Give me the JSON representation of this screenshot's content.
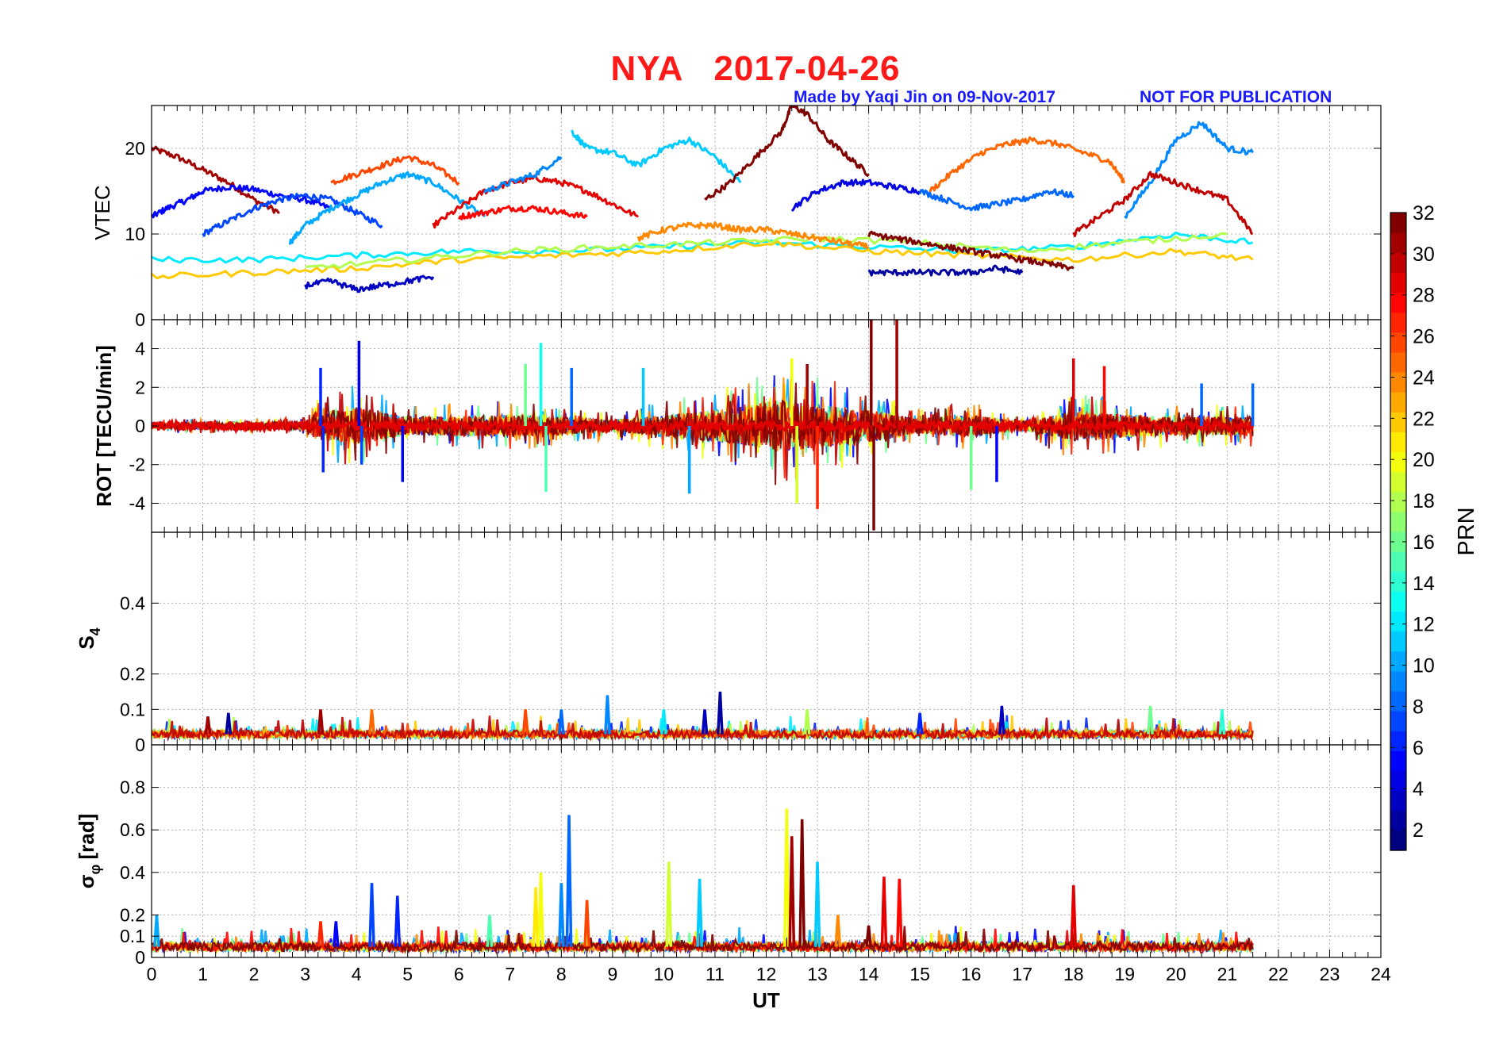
{
  "header": {
    "station": "NYA",
    "date": "2017-04-26",
    "made_by": "Made by Yaqi Jin on 09-Nov-2017",
    "notice": "NOT FOR PUBLICATION"
  },
  "colorbar": {
    "label": "PRN",
    "min": 1,
    "max": 32,
    "ticks": [
      2,
      4,
      6,
      8,
      10,
      12,
      14,
      16,
      18,
      20,
      22,
      24,
      26,
      28,
      30,
      32
    ],
    "colormap": "jet"
  },
  "chart_data": [
    {
      "type": "line",
      "id": "vtec",
      "ylabel": "VTEC",
      "xlim": [
        0,
        24
      ],
      "ylim": [
        0,
        25
      ],
      "yticks": [
        0,
        10,
        20
      ],
      "grid": true,
      "series": [
        {
          "prn": 31,
          "x": [
            0,
            0.5,
            1,
            1.5,
            2,
            2.5
          ],
          "y": [
            20,
            19,
            17.5,
            16,
            14,
            12.5
          ]
        },
        {
          "prn": 5,
          "x": [
            0,
            0.3,
            0.7,
            1,
            1.5,
            2,
            2.5,
            3,
            3.5
          ],
          "y": [
            12,
            13,
            14,
            15,
            15.5,
            15.2,
            14.5,
            14,
            13
          ]
        },
        {
          "prn": 7,
          "x": [
            1,
            1.5,
            2,
            2.5,
            3,
            3.5,
            4,
            4.5
          ],
          "y": [
            10,
            11.5,
            13,
            14,
            14.5,
            14,
            12.5,
            11
          ]
        },
        {
          "prn": 26,
          "x": [
            3.5,
            4,
            4.5,
            5,
            5.5,
            6
          ],
          "y": [
            16,
            17,
            18,
            19,
            18,
            16
          ]
        },
        {
          "prn": 10,
          "x": [
            2.7,
            3,
            3.5,
            4,
            4.5,
            5,
            5.5,
            6,
            6.5
          ],
          "y": [
            9,
            11,
            13,
            14.5,
            16,
            17,
            16,
            14,
            12
          ]
        },
        {
          "prn": 29,
          "x": [
            5.5,
            6,
            6.5,
            7,
            7.5,
            8,
            8.5,
            9,
            9.5
          ],
          "y": [
            11,
            13,
            15,
            16,
            16.5,
            16,
            15,
            13.5,
            12
          ]
        },
        {
          "prn": 28,
          "x": [
            6,
            6.5,
            7,
            7.5,
            8,
            8.5
          ],
          "y": [
            12,
            12.5,
            13,
            13,
            12.5,
            12
          ]
        },
        {
          "prn": 9,
          "x": [
            6.5,
            7,
            7.5,
            8
          ],
          "y": [
            15,
            16,
            17,
            19
          ]
        },
        {
          "prn": 11,
          "x": [
            8.2,
            8.5,
            9,
            9.5,
            10,
            10.5,
            11,
            11.5
          ],
          "y": [
            22,
            20,
            19.5,
            18,
            20,
            21,
            19,
            16
          ]
        },
        {
          "prn": 32,
          "x": [
            10.8,
            11.3,
            11.8,
            12.3,
            12.5,
            12.8,
            13.2,
            13.6,
            14
          ],
          "y": [
            14,
            16,
            19,
            22,
            25,
            24,
            21,
            19,
            17
          ]
        },
        {
          "prn": 4,
          "x": [
            12.5,
            13,
            13.5,
            14,
            14.5,
            15
          ],
          "y": [
            13,
            15,
            16,
            16,
            15.5,
            15
          ]
        },
        {
          "prn": 8,
          "x": [
            15,
            15.5,
            16,
            16.5,
            17,
            17.5,
            18
          ],
          "y": [
            15,
            14,
            13,
            13.5,
            14,
            15,
            14.5
          ]
        },
        {
          "prn": 25,
          "x": [
            15.2,
            15.7,
            16.2,
            16.7,
            17.2,
            17.7,
            18.2,
            18.7,
            19
          ],
          "y": [
            15,
            17.5,
            19.5,
            20.5,
            21,
            20.5,
            19.5,
            18.5,
            16
          ]
        },
        {
          "prn": 9,
          "x": [
            19,
            19.5,
            20,
            20.5,
            21,
            21.5
          ],
          "y": [
            12,
            16,
            21,
            23,
            20,
            19.5
          ]
        },
        {
          "prn": 30,
          "x": [
            18,
            18.5,
            19,
            19.5,
            20,
            20.5,
            21,
            21.5
          ],
          "y": [
            10,
            12,
            14,
            17,
            16,
            15,
            14,
            10
          ]
        },
        {
          "prn": 12,
          "x": [
            0,
            2,
            4,
            6,
            8,
            10,
            12,
            14,
            16,
            18,
            20,
            21.5
          ],
          "y": [
            7,
            7,
            7.5,
            8,
            8,
            8.5,
            9,
            8.5,
            8,
            8.5,
            10,
            9
          ]
        },
        {
          "prn": 22,
          "x": [
            0,
            2,
            4,
            6,
            8,
            10,
            12,
            14,
            16,
            18,
            20,
            21.5
          ],
          "y": [
            5,
            5.5,
            6,
            7,
            7.5,
            8,
            9,
            8,
            7.5,
            7,
            8,
            7
          ]
        },
        {
          "prn": 18,
          "x": [
            3,
            5,
            7,
            9,
            11,
            13,
            15,
            17,
            19,
            21
          ],
          "y": [
            6,
            7,
            8,
            8.5,
            9,
            9.5,
            9,
            8,
            9,
            10
          ]
        },
        {
          "prn": 24,
          "x": [
            9.5,
            10,
            10.5,
            11,
            11.5,
            12,
            12.5,
            13,
            13.5,
            14
          ],
          "y": [
            9.5,
            10.5,
            11,
            11,
            10.5,
            10.5,
            10,
            9.5,
            9,
            8.5
          ]
        },
        {
          "prn": 3,
          "x": [
            3,
            3.5,
            4,
            4.5,
            5,
            5.5
          ],
          "y": [
            4,
            4.5,
            3.5,
            4,
            4.5,
            5
          ]
        },
        {
          "prn": 2,
          "x": [
            14,
            14.5,
            15,
            15.5,
            16,
            16.5,
            17
          ],
          "y": [
            5.5,
            5.5,
            5.5,
            5.5,
            5.5,
            6,
            5.5
          ]
        },
        {
          "prn": 33,
          "x": [
            14,
            14.5,
            15,
            15.5,
            16,
            16.5,
            17,
            17.5,
            18
          ],
          "y": [
            10,
            9.5,
            9,
            8.5,
            8,
            7.5,
            7,
            6.5,
            6
          ]
        }
      ]
    },
    {
      "type": "line",
      "id": "rot",
      "ylabel": "ROT [TECU/min]",
      "xlim": [
        0,
        24
      ],
      "ylim": [
        -5.5,
        5.5
      ],
      "yticks": [
        -4,
        -2,
        0,
        2,
        4
      ],
      "grid": true,
      "data_end_hour": 21.5,
      "noise_envelope": [
        [
          0,
          0.4
        ],
        [
          3,
          0.5
        ],
        [
          3.2,
          1.8
        ],
        [
          4,
          2.5
        ],
        [
          5,
          1.2
        ],
        [
          7,
          1.5
        ],
        [
          8,
          1.2
        ],
        [
          9,
          0.8
        ],
        [
          10,
          1.5
        ],
        [
          11.5,
          2.5
        ],
        [
          12.2,
          3.5
        ],
        [
          13,
          3
        ],
        [
          14,
          2.2
        ],
        [
          15,
          1
        ],
        [
          16,
          1.5
        ],
        [
          17,
          0.6
        ],
        [
          18,
          2
        ],
        [
          19,
          1.6
        ],
        [
          20,
          1.2
        ],
        [
          21.5,
          1.3
        ]
      ],
      "spikes": [
        {
          "x": 3.3,
          "y": 3.0,
          "prn": 6
        },
        {
          "x": 3.35,
          "y": -2.4,
          "prn": 6
        },
        {
          "x": 4.05,
          "y": 4.4,
          "prn": 4
        },
        {
          "x": 4.1,
          "y": -2.0,
          "prn": 7
        },
        {
          "x": 4.9,
          "y": -2.9,
          "prn": 5
        },
        {
          "x": 7.3,
          "y": 3.2,
          "prn": 16
        },
        {
          "x": 7.6,
          "y": 4.3,
          "prn": 13
        },
        {
          "x": 7.7,
          "y": -3.4,
          "prn": 15
        },
        {
          "x": 8.2,
          "y": 3.0,
          "prn": 8
        },
        {
          "x": 9.6,
          "y": 3.0,
          "prn": 11
        },
        {
          "x": 10.5,
          "y": -3.5,
          "prn": 10
        },
        {
          "x": 12.5,
          "y": 3.5,
          "prn": 20
        },
        {
          "x": 12.6,
          "y": -4.0,
          "prn": 19
        },
        {
          "x": 12.8,
          "y": 3.2,
          "prn": 31
        },
        {
          "x": 13.0,
          "y": -4.3,
          "prn": 27
        },
        {
          "x": 14.05,
          "y": 5.5,
          "prn": 32
        },
        {
          "x": 14.1,
          "y": -5.4,
          "prn": 32
        },
        {
          "x": 14.55,
          "y": 5.5,
          "prn": 31
        },
        {
          "x": 16.0,
          "y": -3.3,
          "prn": 16
        },
        {
          "x": 16.5,
          "y": -2.9,
          "prn": 5
        },
        {
          "x": 18.0,
          "y": 3.5,
          "prn": 29
        },
        {
          "x": 18.6,
          "y": 3.1,
          "prn": 28
        },
        {
          "x": 20.5,
          "y": 2.2,
          "prn": 8
        },
        {
          "x": 21.5,
          "y": 2.2,
          "prn": 8
        }
      ]
    },
    {
      "type": "line",
      "id": "s4",
      "ylabel": "S4",
      "ylabel_main": "S",
      "ylabel_sub": "4",
      "xlim": [
        0,
        24
      ],
      "ylim": [
        0,
        0.6
      ],
      "yticks": [
        0,
        0.1,
        0.2,
        0.4
      ],
      "grid": true,
      "data_end_hour": 21.5,
      "baseline": 0.03,
      "spikes": [
        {
          "x": 1.1,
          "y": 0.08,
          "prn": 31
        },
        {
          "x": 1.5,
          "y": 0.09,
          "prn": 2
        },
        {
          "x": 3.3,
          "y": 0.1,
          "prn": 31
        },
        {
          "x": 4.3,
          "y": 0.1,
          "prn": 25
        },
        {
          "x": 7.3,
          "y": 0.1,
          "prn": 26
        },
        {
          "x": 8.0,
          "y": 0.1,
          "prn": 8
        },
        {
          "x": 8.9,
          "y": 0.14,
          "prn": 9
        },
        {
          "x": 10.0,
          "y": 0.1,
          "prn": 12
        },
        {
          "x": 10.8,
          "y": 0.1,
          "prn": 3
        },
        {
          "x": 11.1,
          "y": 0.15,
          "prn": 2
        },
        {
          "x": 12.8,
          "y": 0.1,
          "prn": 18
        },
        {
          "x": 15.0,
          "y": 0.09,
          "prn": 6
        },
        {
          "x": 16.6,
          "y": 0.11,
          "prn": 3
        },
        {
          "x": 19.5,
          "y": 0.11,
          "prn": 16
        },
        {
          "x": 20.9,
          "y": 0.1,
          "prn": 14
        }
      ]
    },
    {
      "type": "line",
      "id": "sigma_phi",
      "ylabel": "σ_φ [rad]",
      "ylabel_main": "σ",
      "ylabel_sub": "φ",
      "ylabel_unit": "[rad]",
      "xlabel": "UT",
      "xlim": [
        0,
        24
      ],
      "xticks": [
        0,
        1,
        2,
        3,
        4,
        5,
        6,
        7,
        8,
        9,
        10,
        11,
        12,
        13,
        14,
        15,
        16,
        17,
        18,
        19,
        20,
        21,
        22,
        23,
        24
      ],
      "ylim": [
        0,
        1.0
      ],
      "yticks": [
        0,
        0.1,
        0.2,
        0.4,
        0.6,
        0.8
      ],
      "grid": true,
      "data_end_hour": 21.5,
      "baseline": 0.05,
      "spikes": [
        {
          "x": 0.1,
          "y": 0.2,
          "prn": 10
        },
        {
          "x": 3.3,
          "y": 0.17,
          "prn": 27
        },
        {
          "x": 3.6,
          "y": 0.17,
          "prn": 5
        },
        {
          "x": 4.3,
          "y": 0.35,
          "prn": 7
        },
        {
          "x": 4.8,
          "y": 0.29,
          "prn": 6
        },
        {
          "x": 6.6,
          "y": 0.2,
          "prn": 15
        },
        {
          "x": 7.5,
          "y": 0.33,
          "prn": 21
        },
        {
          "x": 7.6,
          "y": 0.4,
          "prn": 20
        },
        {
          "x": 8.0,
          "y": 0.35,
          "prn": 9
        },
        {
          "x": 8.15,
          "y": 0.67,
          "prn": 8
        },
        {
          "x": 8.5,
          "y": 0.27,
          "prn": 26
        },
        {
          "x": 10.1,
          "y": 0.45,
          "prn": 19
        },
        {
          "x": 10.7,
          "y": 0.37,
          "prn": 11
        },
        {
          "x": 12.4,
          "y": 0.7,
          "prn": 20
        },
        {
          "x": 12.5,
          "y": 0.57,
          "prn": 31
        },
        {
          "x": 12.7,
          "y": 0.65,
          "prn": 32
        },
        {
          "x": 13.0,
          "y": 0.45,
          "prn": 11
        },
        {
          "x": 13.4,
          "y": 0.2,
          "prn": 24
        },
        {
          "x": 14.0,
          "y": 0.15,
          "prn": 32
        },
        {
          "x": 14.3,
          "y": 0.38,
          "prn": 29
        },
        {
          "x": 14.6,
          "y": 0.37,
          "prn": 28
        },
        {
          "x": 18.0,
          "y": 0.34,
          "prn": 29
        }
      ]
    }
  ]
}
